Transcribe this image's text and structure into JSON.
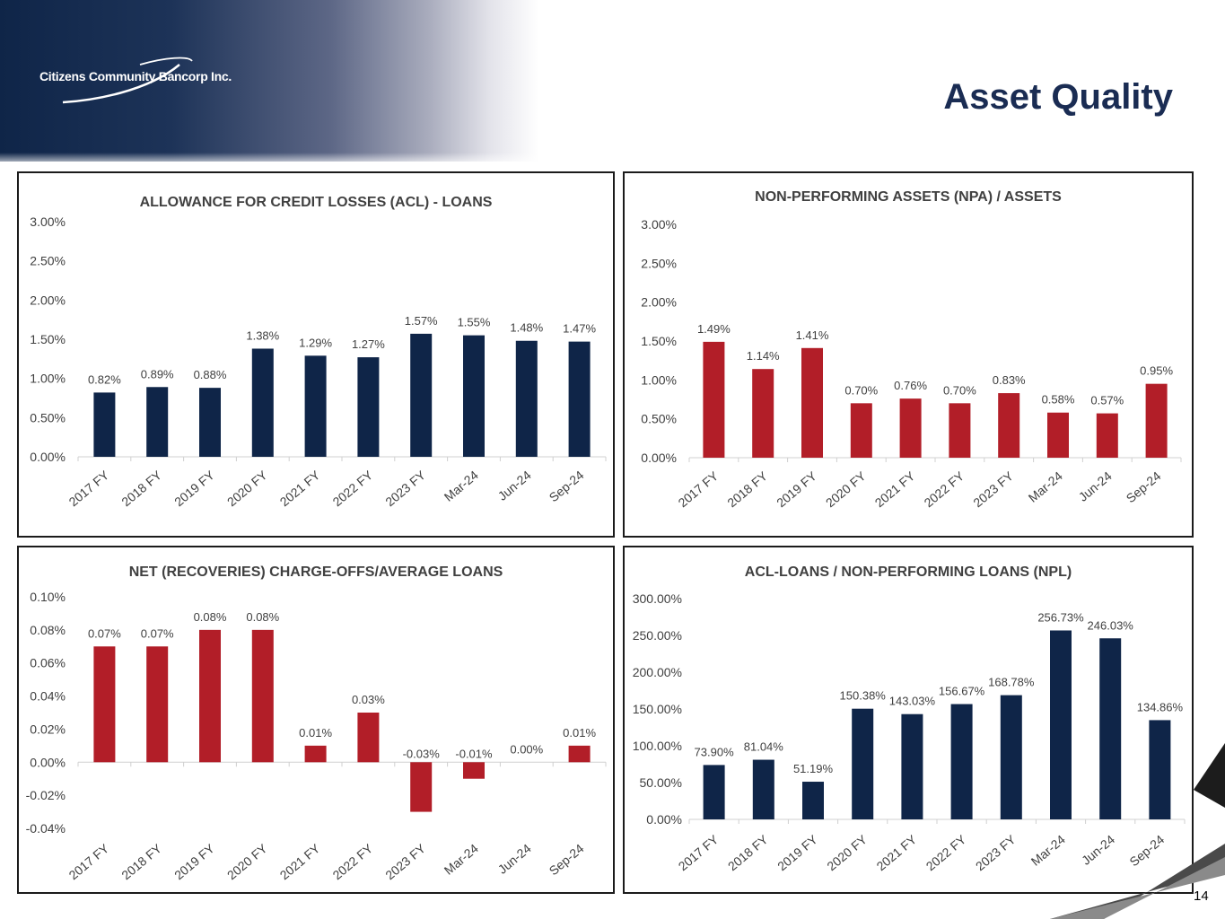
{
  "company": {
    "name": "Citizens Community Bancorp Inc."
  },
  "page": {
    "title": "Asset Quality",
    "number": "14"
  },
  "colors": {
    "navy": "#0f2548",
    "red": "#b21e28",
    "title": "#1a2c53"
  },
  "chart_data": [
    {
      "type": "bar",
      "title": "ALLOWANCE FOR CREDIT LOSSES (ACL) - LOANS",
      "categories": [
        "2017 FY",
        "2018 FY",
        "2019 FY",
        "2020 FY",
        "2021 FY",
        "2022 FY",
        "2023 FY",
        "Mar-24",
        "Jun-24",
        "Sep-24"
      ],
      "values": [
        0.82,
        0.89,
        0.88,
        1.38,
        1.29,
        1.27,
        1.57,
        1.55,
        1.48,
        1.47
      ],
      "data_labels": [
        "0.82%",
        "0.89%",
        "0.88%",
        "1.38%",
        "1.29%",
        "1.27%",
        "1.57%",
        "1.55%",
        "1.48%",
        "1.47%"
      ],
      "yticks": [
        0,
        0.5,
        1.0,
        1.5,
        2.0,
        2.5,
        3.0
      ],
      "ytick_labels": [
        "0.00%",
        "0.50%",
        "1.00%",
        "1.50%",
        "2.00%",
        "2.50%",
        "3.00%"
      ],
      "ylim": [
        0,
        3
      ],
      "color": "#0f2548",
      "xlabel": "",
      "ylabel": ""
    },
    {
      "type": "bar",
      "title": "NON-PERFORMING ASSETS (NPA)  / ASSETS",
      "categories": [
        "2017 FY",
        "2018 FY",
        "2019 FY",
        "2020 FY",
        "2021 FY",
        "2022 FY",
        "2023 FY",
        "Mar-24",
        "Jun-24",
        "Sep-24"
      ],
      "values": [
        1.49,
        1.14,
        1.41,
        0.7,
        0.76,
        0.7,
        0.83,
        0.58,
        0.57,
        0.95
      ],
      "data_labels": [
        "1.49%",
        "1.14%",
        "1.41%",
        "0.70%",
        "0.76%",
        "0.70%",
        "0.83%",
        "0.58%",
        "0.57%",
        "0.95%"
      ],
      "yticks": [
        0,
        0.5,
        1.0,
        1.5,
        2.0,
        2.5,
        3.0
      ],
      "ytick_labels": [
        "0.00%",
        "0.50%",
        "1.00%",
        "1.50%",
        "2.00%",
        "2.50%",
        "3.00%"
      ],
      "ylim": [
        0,
        3
      ],
      "color": "#b21e28",
      "xlabel": "",
      "ylabel": ""
    },
    {
      "type": "bar",
      "title": "NET (RECOVERIES) CHARGE-OFFS/AVERAGE LOANS",
      "categories": [
        "2017 FY",
        "2018 FY",
        "2019 FY",
        "2020 FY",
        "2021 FY",
        "2022 FY",
        "2023 FY",
        "Mar-24",
        "Jun-24",
        "Sep-24"
      ],
      "values": [
        0.07,
        0.07,
        0.08,
        0.08,
        0.01,
        0.03,
        -0.03,
        -0.01,
        0.0,
        0.01
      ],
      "data_labels": [
        "0.07%",
        "0.07%",
        "0.08%",
        "0.08%",
        "0.01%",
        "0.03%",
        "-0.03%",
        "-0.01%",
        "0.00%",
        "0.01%"
      ],
      "yticks": [
        -0.04,
        -0.02,
        0,
        0.02,
        0.04,
        0.06,
        0.08,
        0.1
      ],
      "ytick_labels": [
        "-0.04%",
        "-0.02%",
        "0.00%",
        "0.02%",
        "0.04%",
        "0.06%",
        "0.08%",
        "0.10%"
      ],
      "ylim": [
        -0.04,
        0.1
      ],
      "color": "#b21e28",
      "xlabel": "",
      "ylabel": ""
    },
    {
      "type": "bar",
      "title": "ACL-LOANS / NON-PERFORMING LOANS (NPL)",
      "categories": [
        "2017 FY",
        "2018 FY",
        "2019 FY",
        "2020 FY",
        "2021 FY",
        "2022 FY",
        "2023 FY",
        "Mar-24",
        "Jun-24",
        "Sep-24"
      ],
      "values": [
        73.9,
        81.04,
        51.19,
        150.38,
        143.03,
        156.67,
        168.78,
        256.73,
        246.03,
        134.86
      ],
      "data_labels": [
        "73.90%",
        "81.04%",
        "51.19%",
        "150.38%",
        "143.03%",
        "156.67%",
        "168.78%",
        "256.73%",
        "246.03%",
        "134.86%"
      ],
      "yticks": [
        0,
        50,
        100,
        150,
        200,
        250,
        300
      ],
      "ytick_labels": [
        "0.00%",
        "50.00%",
        "100.00%",
        "150.00%",
        "200.00%",
        "250.00%",
        "300.00%"
      ],
      "ylim": [
        0,
        300
      ],
      "color": "#0f2548",
      "xlabel": "",
      "ylabel": ""
    }
  ]
}
